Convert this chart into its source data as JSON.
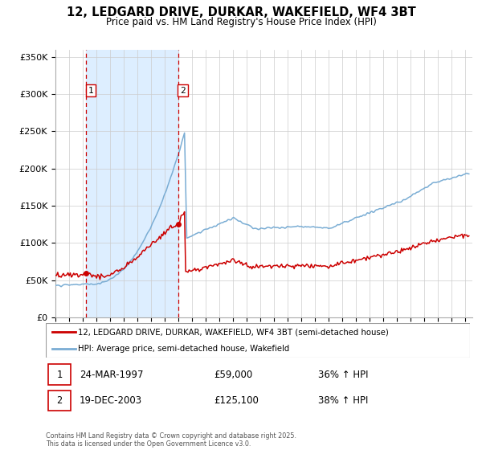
{
  "title": "12, LEDGARD DRIVE, DURKAR, WAKEFIELD, WF4 3BT",
  "subtitle": "Price paid vs. HM Land Registry's House Price Index (HPI)",
  "sale1_date": 1997.23,
  "sale1_price": 59000,
  "sale1_label": "1",
  "sale1_display": "24-MAR-1997",
  "sale1_pct": "36% ↑ HPI",
  "sale2_date": 2003.97,
  "sale2_price": 125100,
  "sale2_label": "2",
  "sale2_display": "19-DEC-2003",
  "sale2_pct": "38% ↑ HPI",
  "legend_line1": "12, LEDGARD DRIVE, DURKAR, WAKEFIELD, WF4 3BT (semi-detached house)",
  "legend_line2": "HPI: Average price, semi-detached house, Wakefield",
  "footer": "Contains HM Land Registry data © Crown copyright and database right 2025.\nThis data is licensed under the Open Government Licence v3.0.",
  "house_color": "#cc0000",
  "hpi_color": "#7aadd4",
  "bg_shade_color": "#ddeeff",
  "vline_color": "#cc0000",
  "grid_color": "#cccccc",
  "ylim": [
    0,
    360000
  ],
  "yticks": [
    0,
    50000,
    100000,
    150000,
    200000,
    250000,
    300000,
    350000
  ],
  "xlim_start": 1995.0,
  "xlim_end": 2025.5
}
